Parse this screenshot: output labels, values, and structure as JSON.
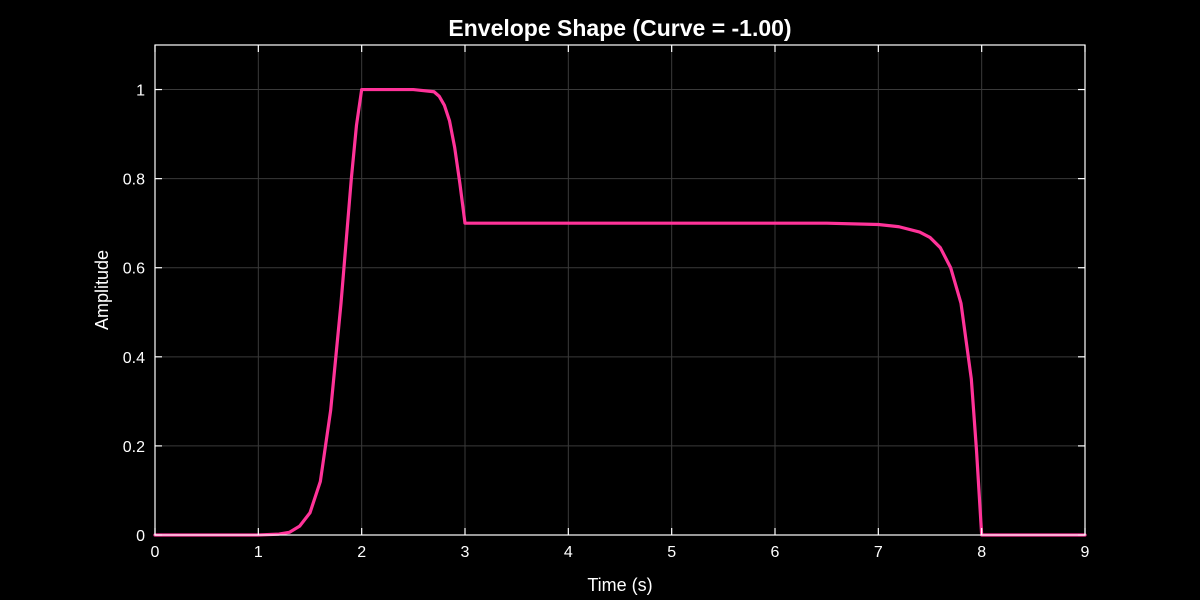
{
  "chart_data": {
    "type": "line",
    "title": "Envelope Shape (Curve = -1.00)",
    "xlabel": "Time (s)",
    "ylabel": "Amplitude",
    "xlim": [
      0,
      9
    ],
    "ylim": [
      0,
      1.1
    ],
    "xticks": [
      0,
      1,
      2,
      3,
      4,
      5,
      6,
      7,
      8,
      9
    ],
    "xtick_labels": [
      "0",
      "1",
      "2",
      "3",
      "4",
      "5",
      "6",
      "7",
      "8",
      "9"
    ],
    "yticks": [
      0,
      0.2,
      0.4,
      0.6,
      0.8,
      1
    ],
    "ytick_labels": [
      "0",
      "0.2",
      "0.4",
      "0.6",
      "0.8",
      "1"
    ],
    "grid": true,
    "colors": {
      "background": "#000000",
      "line": "#ff3399",
      "axes": "#ffffff",
      "grid": "#3a3a3a"
    },
    "series": [
      {
        "x": [
          0,
          1.0,
          1.2,
          1.3,
          1.4,
          1.5,
          1.6,
          1.7,
          1.75,
          1.8,
          1.85,
          1.9,
          1.95,
          2.0,
          2.0,
          2.5,
          2.7,
          2.75,
          2.8,
          2.85,
          2.9,
          2.95,
          3.0,
          3.0,
          6.0,
          6.5,
          7.0,
          7.2,
          7.4,
          7.5,
          7.6,
          7.7,
          7.8,
          7.9,
          7.95,
          8.0,
          8.0,
          9.0
        ],
        "y": [
          0,
          0,
          0.002,
          0.006,
          0.02,
          0.05,
          0.12,
          0.28,
          0.4,
          0.52,
          0.66,
          0.8,
          0.92,
          1.0,
          1.0,
          1.0,
          0.995,
          0.985,
          0.965,
          0.93,
          0.87,
          0.79,
          0.7,
          0.7,
          0.7,
          0.7,
          0.697,
          0.692,
          0.68,
          0.668,
          0.645,
          0.6,
          0.52,
          0.35,
          0.19,
          0.0,
          0.0,
          0.0
        ]
      }
    ]
  }
}
